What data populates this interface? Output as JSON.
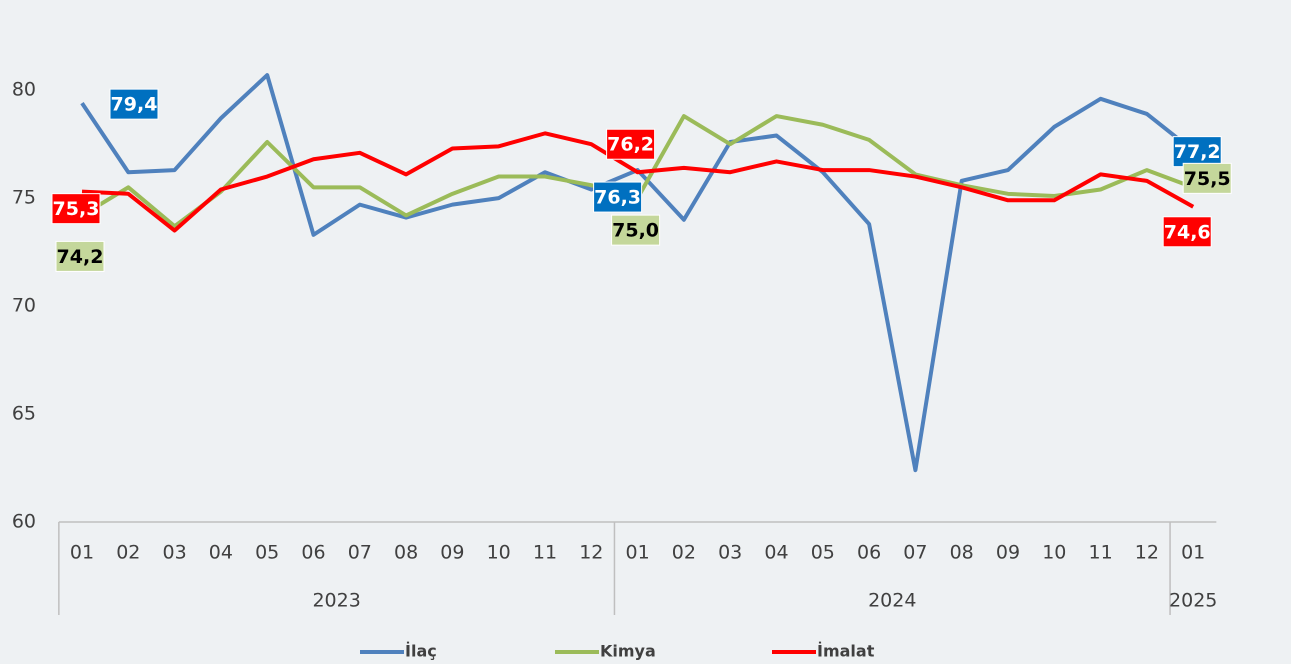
{
  "chart_data": {
    "type": "line",
    "categories": [
      "01",
      "02",
      "03",
      "04",
      "05",
      "06",
      "07",
      "08",
      "09",
      "10",
      "11",
      "12",
      "01",
      "02",
      "03",
      "04",
      "05",
      "06",
      "07",
      "08",
      "09",
      "10",
      "11",
      "12",
      "01"
    ],
    "groups": [
      {
        "label": "2023",
        "span": 12
      },
      {
        "label": "2024",
        "span": 12
      },
      {
        "label": "2025",
        "span": 1
      }
    ],
    "ylim": [
      60,
      82
    ],
    "yticks": [
      60,
      65,
      70,
      75,
      80
    ],
    "grid": false,
    "legend": "bottom",
    "series": [
      {
        "name": "İlaç",
        "color": "#4f81bd",
        "values": [
          79.4,
          76.2,
          76.3,
          78.7,
          80.7,
          73.3,
          74.7,
          74.1,
          74.7,
          75.0,
          76.2,
          75.4,
          76.3,
          74.0,
          77.6,
          77.9,
          76.2,
          73.8,
          62.4,
          75.8,
          76.3,
          78.3,
          79.6,
          78.9,
          77.2
        ],
        "value_labels": [
          "79,4",
          null,
          null,
          null,
          null,
          null,
          null,
          null,
          null,
          null,
          null,
          null,
          "76,3",
          null,
          null,
          null,
          null,
          null,
          null,
          null,
          null,
          null,
          null,
          null,
          "77,2"
        ]
      },
      {
        "name": "Kimya",
        "color": "#9bbb59",
        "values": [
          74.2,
          75.5,
          73.7,
          75.3,
          77.6,
          75.5,
          75.5,
          74.2,
          75.2,
          76.0,
          76.0,
          75.6,
          75.0,
          78.8,
          77.5,
          78.8,
          78.4,
          77.7,
          76.1,
          75.6,
          75.2,
          75.1,
          75.4,
          76.3,
          75.5
        ],
        "value_labels": [
          "74,2",
          null,
          null,
          null,
          null,
          null,
          null,
          null,
          null,
          null,
          null,
          null,
          "75,0",
          null,
          null,
          null,
          null,
          null,
          null,
          null,
          null,
          null,
          null,
          null,
          "75,5"
        ]
      },
      {
        "name": "İmalat",
        "color": "#ff0000",
        "values": [
          75.3,
          75.2,
          73.5,
          75.4,
          76.0,
          76.8,
          77.1,
          76.1,
          77.3,
          77.4,
          78.0,
          77.5,
          76.2,
          76.4,
          76.2,
          76.7,
          76.3,
          76.3,
          76.0,
          75.5,
          74.9,
          74.9,
          76.1,
          75.8,
          74.6
        ],
        "value_labels": [
          "75,3",
          null,
          null,
          null,
          null,
          null,
          null,
          null,
          null,
          null,
          null,
          null,
          "76,2",
          null,
          null,
          null,
          null,
          null,
          null,
          null,
          null,
          null,
          null,
          null,
          "74,6"
        ]
      }
    ]
  }
}
